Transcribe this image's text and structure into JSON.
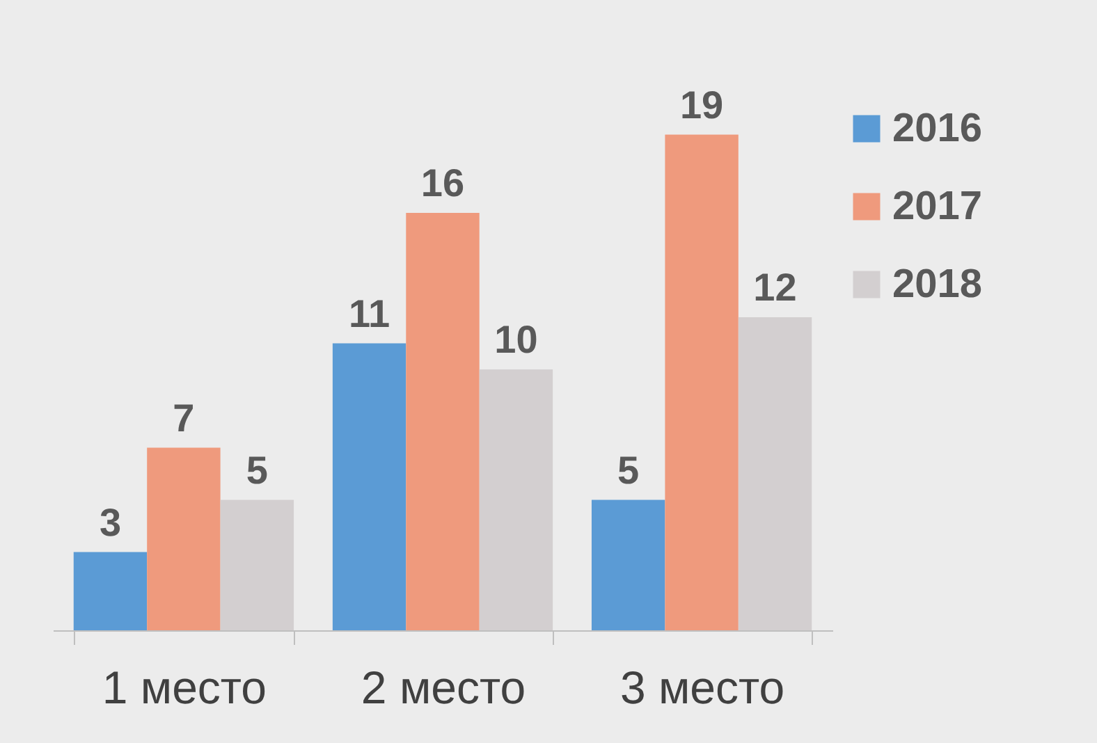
{
  "chart_data": {
    "type": "bar",
    "categories": [
      "1 место",
      "2 место",
      "3 место"
    ],
    "series": [
      {
        "name": "2016",
        "color": "#5b9bd5",
        "values": [
          3,
          11,
          5
        ]
      },
      {
        "name": "2017",
        "color": "#ef9a7d",
        "values": [
          7,
          16,
          19
        ]
      },
      {
        "name": "2018",
        "color": "#d3cfd0",
        "values": [
          5,
          10,
          12
        ]
      }
    ],
    "data_labels": true,
    "legend": "right",
    "grid": false
  }
}
